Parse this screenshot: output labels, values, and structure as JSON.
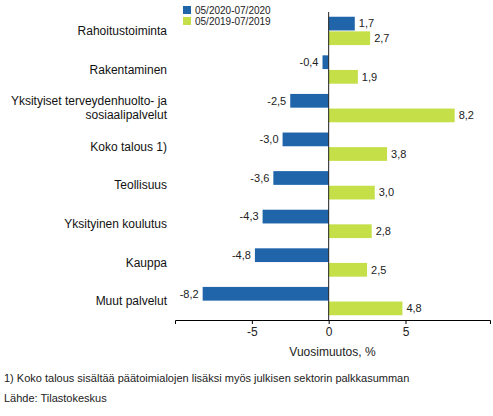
{
  "chart_data": {
    "type": "bar",
    "orientation": "horizontal",
    "categories": [
      "Rahoitustoiminta",
      "Rakentaminen",
      "Yksityiset terveydenhuolto- ja sosiaalipalvelut",
      "Koko talous 1)",
      "Teollisuus",
      "Yksityinen koulutus",
      "Kauppa",
      "Muut palvelut"
    ],
    "series": [
      {
        "name": "05/2020-07/2020",
        "color": "#2065aa",
        "values": [
          1.7,
          -0.4,
          -2.5,
          -3.0,
          -3.6,
          -4.3,
          -4.8,
          -8.2
        ],
        "value_labels": [
          "1,7",
          "-0,4",
          "-2,5",
          "-3,0",
          "-3,6",
          "-4,3",
          "-4,8",
          "-8,2"
        ]
      },
      {
        "name": "05/2019-07/2019",
        "color": "#c4df48",
        "values": [
          2.7,
          1.9,
          8.2,
          3.8,
          3.0,
          2.8,
          2.5,
          4.8
        ],
        "value_labels": [
          "2,7",
          "1,9",
          "8,2",
          "3,8",
          "3,0",
          "2,8",
          "2,5",
          "4,8"
        ]
      }
    ],
    "xlim": [
      -10,
      10.5
    ],
    "xticks": [
      -5,
      0,
      5
    ],
    "x_label": "Vuosimuutos, %",
    "data_labels": true,
    "legend": "top-left",
    "grid": false,
    "notes": [
      "1) Koko talous sisältää päätoimialojen lisäksi myös julkisen sektorin palkkasumman",
      "Lähde: Tilastokeskus"
    ]
  }
}
